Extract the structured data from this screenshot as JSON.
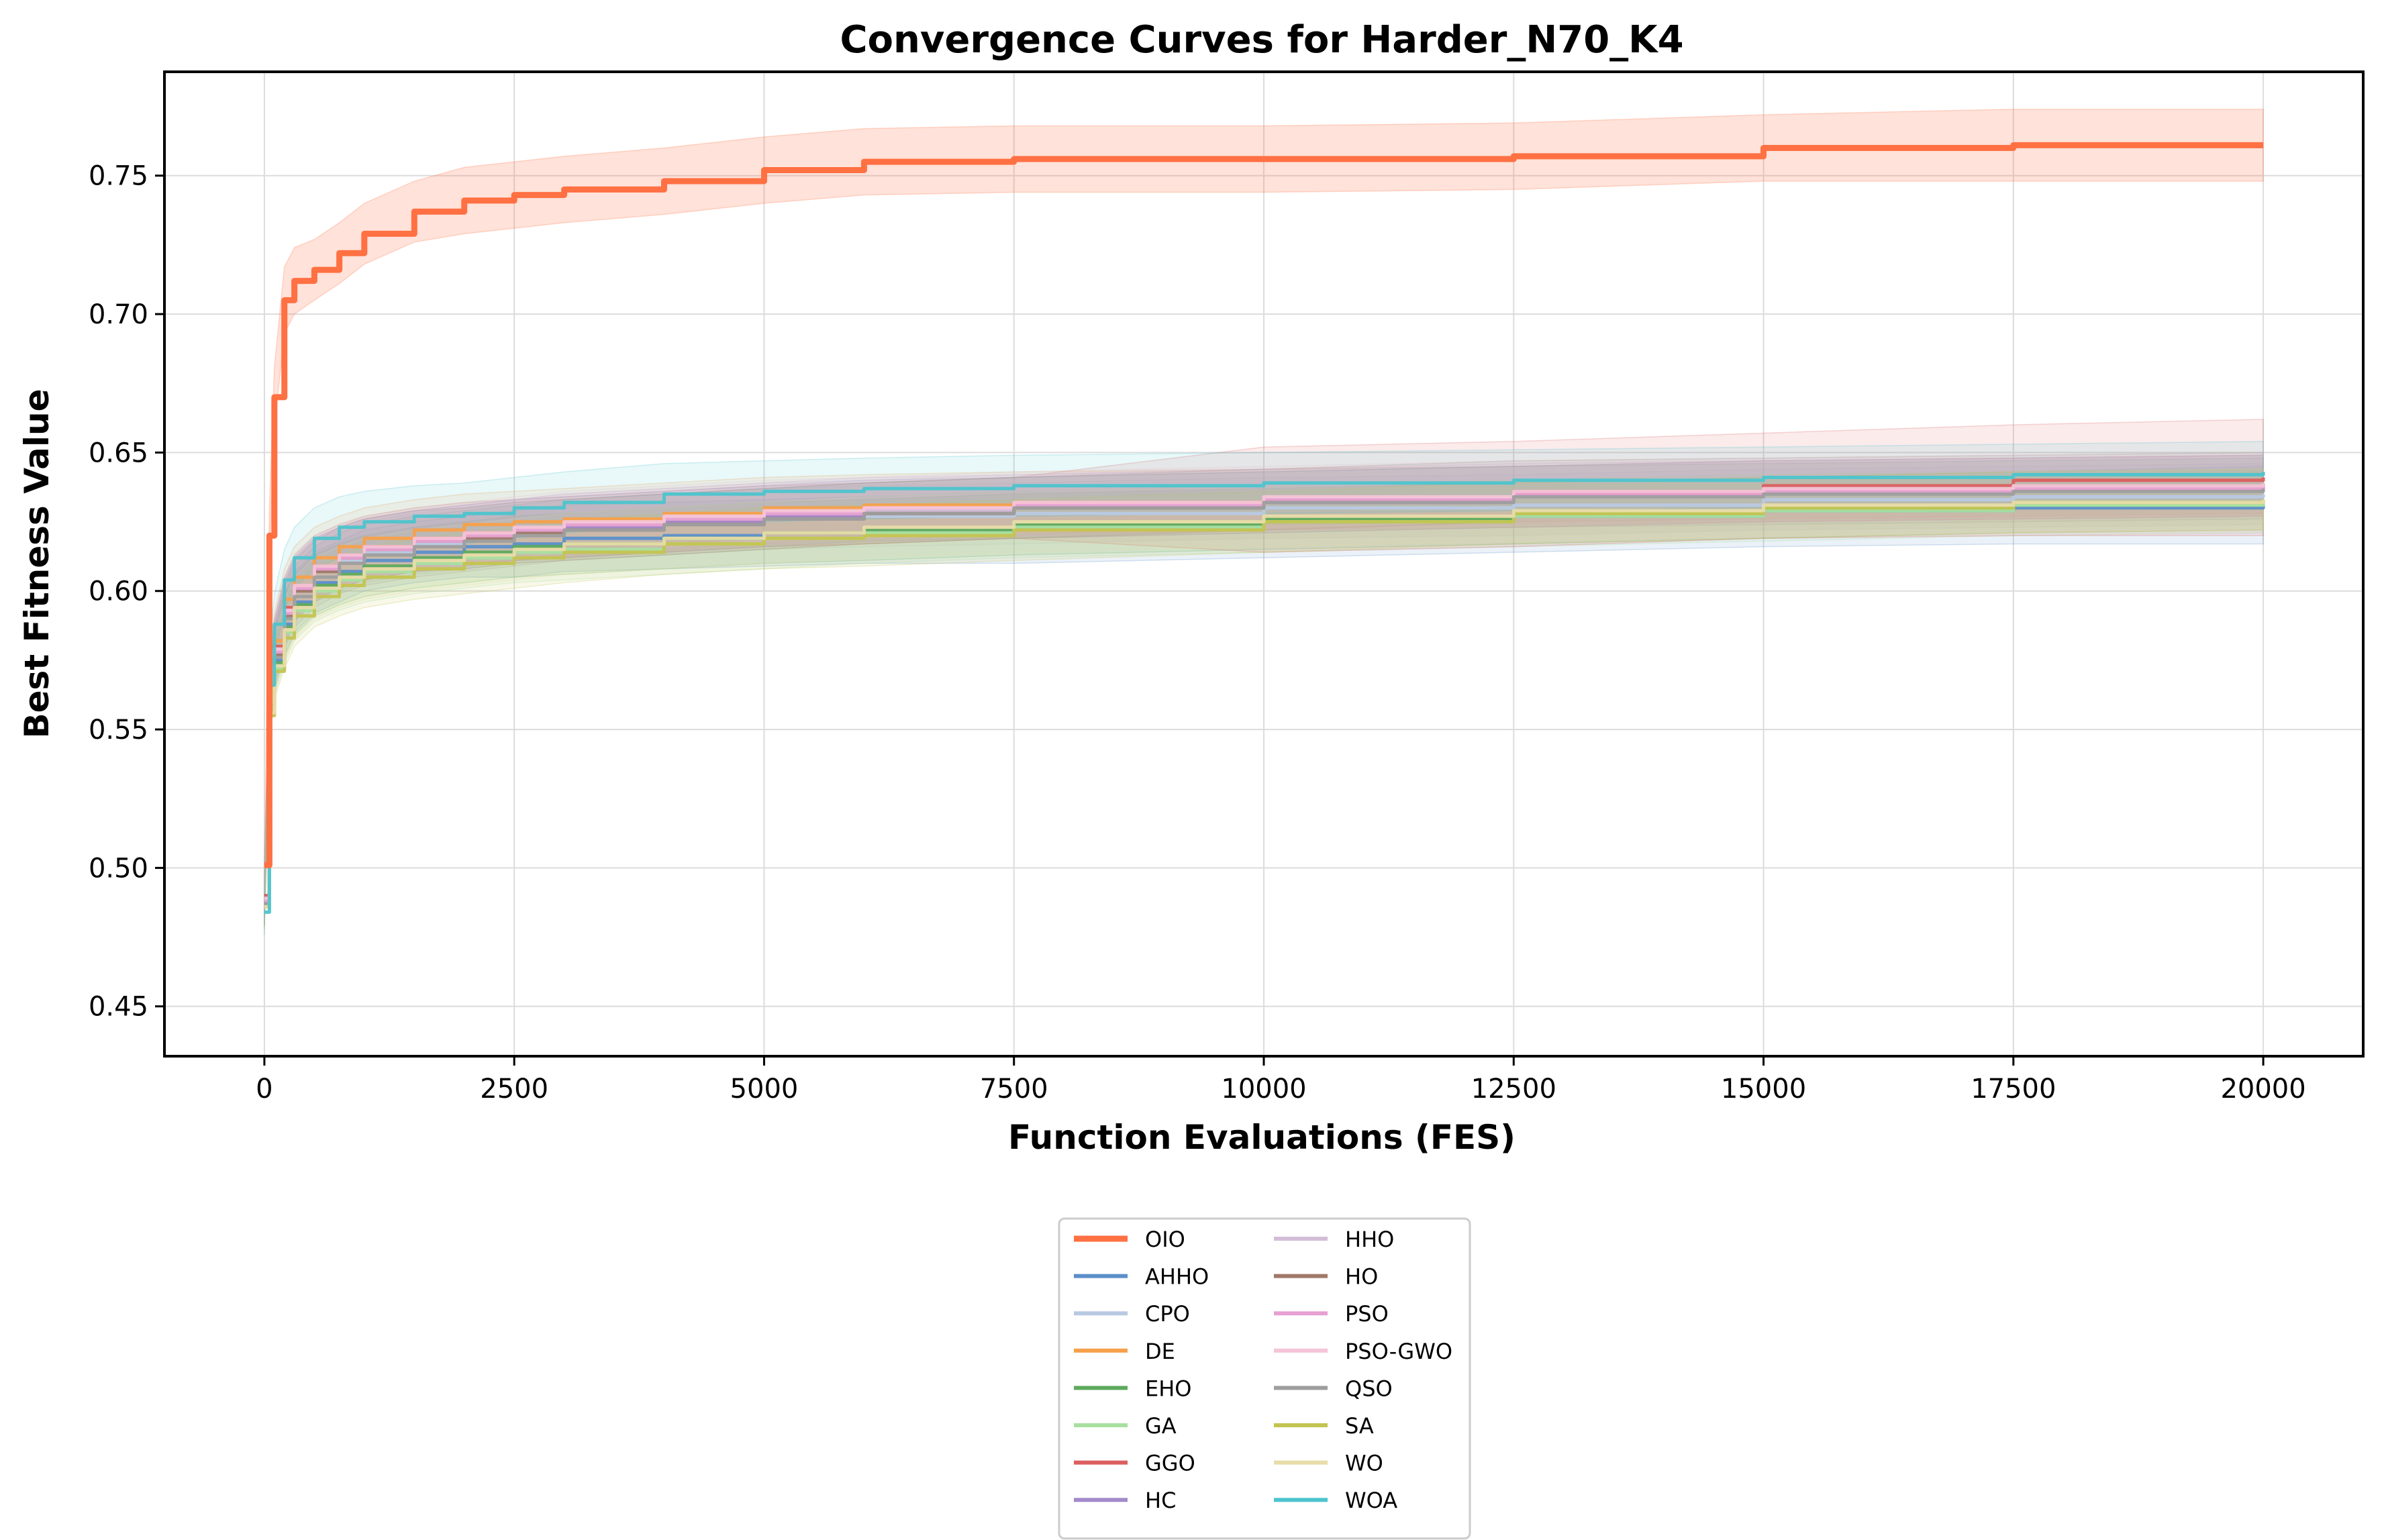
{
  "chart_data": {
    "type": "line",
    "title": "Convergence Curves for Harder_N70_K4",
    "xlabel": "Function Evaluations (FES)",
    "ylabel": "Best Fitness Value",
    "xlim": [
      -1000,
      21000
    ],
    "ylim": [
      0.432,
      0.7875
    ],
    "xticks": [
      0,
      2500,
      5000,
      7500,
      10000,
      12500,
      15000,
      17500,
      20000
    ],
    "yticks": [
      0.45,
      0.5,
      0.55,
      0.6,
      0.65,
      0.7,
      0.75
    ],
    "ytick_labels": [
      "0.45",
      "0.50",
      "0.55",
      "0.60",
      "0.65",
      "0.70",
      "0.75"
    ],
    "grid": true,
    "shaded_band": "std",
    "legend": {
      "placement": "below-center",
      "columns": 2
    },
    "x": [
      0,
      50,
      100,
      200,
      300,
      500,
      750,
      1000,
      1500,
      2000,
      2500,
      3000,
      4000,
      5000,
      6000,
      7500,
      10000,
      12500,
      15000,
      17500,
      20000
    ],
    "series": [
      {
        "name": "OIO",
        "color": "#ff7043",
        "highlight": true,
        "values": [
          0.501,
          0.62,
          0.67,
          0.705,
          0.712,
          0.716,
          0.722,
          0.729,
          0.737,
          0.741,
          0.743,
          0.745,
          0.748,
          0.752,
          0.755,
          0.756,
          0.756,
          0.757,
          0.76,
          0.761,
          0.761
        ],
        "spread": [
          0.0,
          0.01,
          0.011,
          0.012,
          0.012,
          0.011,
          0.011,
          0.011,
          0.011,
          0.012,
          0.012,
          0.012,
          0.012,
          0.012,
          0.012,
          0.012,
          0.012,
          0.012,
          0.012,
          0.013,
          0.013
        ]
      },
      {
        "name": "AHHO",
        "color": "#5b8fc9",
        "values": [
          0.49,
          0.558,
          0.575,
          0.588,
          0.596,
          0.603,
          0.607,
          0.611,
          0.614,
          0.616,
          0.617,
          0.619,
          0.62,
          0.621,
          0.622,
          0.623,
          0.625,
          0.627,
          0.629,
          0.63,
          0.631
        ],
        "spread": [
          0.008,
          0.01,
          0.01,
          0.011,
          0.011,
          0.011,
          0.011,
          0.011,
          0.011,
          0.011,
          0.012,
          0.012,
          0.012,
          0.012,
          0.012,
          0.013,
          0.013,
          0.013,
          0.013,
          0.013,
          0.014
        ]
      },
      {
        "name": "CPO",
        "color": "#b8c9e3",
        "values": [
          0.488,
          0.56,
          0.578,
          0.592,
          0.6,
          0.607,
          0.611,
          0.614,
          0.617,
          0.619,
          0.621,
          0.622,
          0.624,
          0.626,
          0.627,
          0.628,
          0.63,
          0.631,
          0.633,
          0.634,
          0.635
        ],
        "spread": [
          0.008,
          0.01,
          0.01,
          0.011,
          0.011,
          0.011,
          0.011,
          0.011,
          0.011,
          0.011,
          0.011,
          0.011,
          0.011,
          0.011,
          0.011,
          0.011,
          0.011,
          0.011,
          0.011,
          0.011,
          0.011
        ]
      },
      {
        "name": "DE",
        "color": "#f5a04a",
        "values": [
          0.489,
          0.563,
          0.582,
          0.597,
          0.605,
          0.612,
          0.616,
          0.619,
          0.622,
          0.624,
          0.625,
          0.626,
          0.628,
          0.63,
          0.631,
          0.632,
          0.633,
          0.634,
          0.636,
          0.637,
          0.638
        ],
        "spread": [
          0.008,
          0.01,
          0.01,
          0.011,
          0.011,
          0.011,
          0.011,
          0.011,
          0.011,
          0.011,
          0.011,
          0.011,
          0.011,
          0.011,
          0.011,
          0.011,
          0.011,
          0.011,
          0.011,
          0.011,
          0.011
        ]
      },
      {
        "name": "EHO",
        "color": "#5daa5d",
        "values": [
          0.487,
          0.557,
          0.574,
          0.587,
          0.595,
          0.602,
          0.606,
          0.609,
          0.612,
          0.614,
          0.616,
          0.617,
          0.619,
          0.621,
          0.622,
          0.624,
          0.626,
          0.628,
          0.63,
          0.632,
          0.633
        ],
        "spread": [
          0.008,
          0.01,
          0.01,
          0.011,
          0.011,
          0.011,
          0.011,
          0.011,
          0.011,
          0.011,
          0.011,
          0.011,
          0.011,
          0.011,
          0.011,
          0.011,
          0.011,
          0.011,
          0.011,
          0.011,
          0.011
        ]
      },
      {
        "name": "GA",
        "color": "#a8e0a0",
        "values": [
          0.486,
          0.556,
          0.572,
          0.585,
          0.593,
          0.6,
          0.604,
          0.607,
          0.61,
          0.612,
          0.614,
          0.615,
          0.617,
          0.619,
          0.621,
          0.623,
          0.625,
          0.627,
          0.629,
          0.631,
          0.632
        ],
        "spread": [
          0.008,
          0.01,
          0.01,
          0.011,
          0.011,
          0.011,
          0.011,
          0.011,
          0.011,
          0.011,
          0.011,
          0.011,
          0.011,
          0.011,
          0.011,
          0.011,
          0.011,
          0.011,
          0.011,
          0.011,
          0.011
        ]
      },
      {
        "name": "GGO",
        "color": "#dc5e5e",
        "values": [
          0.49,
          0.561,
          0.58,
          0.594,
          0.602,
          0.609,
          0.613,
          0.616,
          0.619,
          0.621,
          0.622,
          0.623,
          0.625,
          0.627,
          0.628,
          0.63,
          0.633,
          0.635,
          0.638,
          0.64,
          0.641
        ],
        "spread": [
          0.008,
          0.01,
          0.01,
          0.011,
          0.011,
          0.011,
          0.011,
          0.011,
          0.011,
          0.011,
          0.011,
          0.011,
          0.011,
          0.011,
          0.011,
          0.011,
          0.019,
          0.019,
          0.019,
          0.02,
          0.021
        ]
      },
      {
        "name": "HC",
        "color": "#a38acb",
        "values": [
          0.488,
          0.56,
          0.579,
          0.593,
          0.601,
          0.608,
          0.612,
          0.615,
          0.618,
          0.62,
          0.622,
          0.623,
          0.625,
          0.627,
          0.629,
          0.63,
          0.632,
          0.634,
          0.636,
          0.637,
          0.638
        ],
        "spread": [
          0.008,
          0.01,
          0.01,
          0.011,
          0.011,
          0.011,
          0.011,
          0.011,
          0.011,
          0.011,
          0.011,
          0.011,
          0.011,
          0.011,
          0.011,
          0.011,
          0.011,
          0.011,
          0.011,
          0.011,
          0.011
        ]
      },
      {
        "name": "HHO",
        "color": "#d3bdd7",
        "values": [
          0.489,
          0.561,
          0.579,
          0.593,
          0.601,
          0.608,
          0.612,
          0.615,
          0.618,
          0.62,
          0.622,
          0.624,
          0.626,
          0.628,
          0.629,
          0.631,
          0.633,
          0.634,
          0.636,
          0.637,
          0.638
        ],
        "spread": [
          0.008,
          0.01,
          0.01,
          0.011,
          0.011,
          0.011,
          0.011,
          0.011,
          0.011,
          0.011,
          0.011,
          0.011,
          0.011,
          0.011,
          0.011,
          0.011,
          0.011,
          0.011,
          0.011,
          0.011,
          0.011
        ]
      },
      {
        "name": "HO",
        "color": "#a07868",
        "values": [
          0.487,
          0.559,
          0.577,
          0.591,
          0.6,
          0.607,
          0.612,
          0.615,
          0.618,
          0.619,
          0.621,
          0.622,
          0.624,
          0.626,
          0.628,
          0.63,
          0.633,
          0.636,
          0.637,
          0.638,
          0.639
        ],
        "spread": [
          0.008,
          0.01,
          0.01,
          0.011,
          0.011,
          0.011,
          0.011,
          0.011,
          0.011,
          0.011,
          0.011,
          0.011,
          0.011,
          0.011,
          0.011,
          0.011,
          0.011,
          0.011,
          0.011,
          0.011,
          0.011
        ]
      },
      {
        "name": "PSO",
        "color": "#e7a0d2",
        "values": [
          0.488,
          0.56,
          0.578,
          0.592,
          0.601,
          0.608,
          0.612,
          0.615,
          0.618,
          0.62,
          0.622,
          0.624,
          0.626,
          0.628,
          0.63,
          0.631,
          0.633,
          0.635,
          0.636,
          0.637,
          0.638
        ],
        "spread": [
          0.008,
          0.01,
          0.01,
          0.011,
          0.011,
          0.011,
          0.011,
          0.011,
          0.011,
          0.011,
          0.011,
          0.011,
          0.011,
          0.011,
          0.011,
          0.011,
          0.011,
          0.011,
          0.011,
          0.011,
          0.011
        ]
      },
      {
        "name": "PSO-GWO",
        "color": "#f6c4d8",
        "values": [
          0.489,
          0.561,
          0.579,
          0.593,
          0.602,
          0.609,
          0.613,
          0.616,
          0.619,
          0.621,
          0.623,
          0.625,
          0.627,
          0.629,
          0.63,
          0.632,
          0.634,
          0.636,
          0.637,
          0.638,
          0.639
        ],
        "spread": [
          0.008,
          0.01,
          0.01,
          0.011,
          0.011,
          0.011,
          0.011,
          0.011,
          0.011,
          0.011,
          0.011,
          0.011,
          0.011,
          0.011,
          0.011,
          0.011,
          0.011,
          0.011,
          0.011,
          0.011,
          0.011
        ]
      },
      {
        "name": "QSO",
        "color": "#9e9e9e",
        "values": [
          0.487,
          0.558,
          0.576,
          0.59,
          0.598,
          0.605,
          0.61,
          0.613,
          0.616,
          0.618,
          0.62,
          0.622,
          0.624,
          0.626,
          0.628,
          0.63,
          0.632,
          0.634,
          0.635,
          0.636,
          0.637
        ],
        "spread": [
          0.008,
          0.01,
          0.01,
          0.011,
          0.011,
          0.011,
          0.011,
          0.011,
          0.011,
          0.011,
          0.011,
          0.011,
          0.011,
          0.011,
          0.011,
          0.011,
          0.011,
          0.011,
          0.011,
          0.011,
          0.011
        ]
      },
      {
        "name": "SA",
        "color": "#c4c451",
        "values": [
          0.486,
          0.555,
          0.571,
          0.583,
          0.591,
          0.598,
          0.602,
          0.605,
          0.608,
          0.61,
          0.612,
          0.614,
          0.617,
          0.619,
          0.62,
          0.622,
          0.625,
          0.628,
          0.63,
          0.632,
          0.633
        ],
        "spread": [
          0.008,
          0.01,
          0.01,
          0.011,
          0.011,
          0.011,
          0.011,
          0.011,
          0.011,
          0.011,
          0.011,
          0.011,
          0.011,
          0.011,
          0.011,
          0.011,
          0.011,
          0.011,
          0.011,
          0.011,
          0.011
        ]
      },
      {
        "name": "WO",
        "color": "#e8dca8",
        "values": [
          0.486,
          0.556,
          0.573,
          0.586,
          0.594,
          0.601,
          0.605,
          0.608,
          0.611,
          0.613,
          0.615,
          0.617,
          0.619,
          0.621,
          0.623,
          0.625,
          0.627,
          0.629,
          0.631,
          0.632,
          0.633
        ],
        "spread": [
          0.008,
          0.01,
          0.01,
          0.011,
          0.011,
          0.011,
          0.011,
          0.011,
          0.011,
          0.011,
          0.011,
          0.011,
          0.011,
          0.011,
          0.011,
          0.011,
          0.011,
          0.011,
          0.011,
          0.011,
          0.011
        ]
      },
      {
        "name": "WOA",
        "color": "#4cc4ce",
        "values": [
          0.484,
          0.566,
          0.588,
          0.604,
          0.612,
          0.619,
          0.623,
          0.625,
          0.627,
          0.628,
          0.63,
          0.632,
          0.635,
          0.636,
          0.637,
          0.638,
          0.639,
          0.64,
          0.641,
          0.642,
          0.643
        ],
        "spread": [
          0.008,
          0.011,
          0.011,
          0.011,
          0.011,
          0.011,
          0.011,
          0.011,
          0.011,
          0.011,
          0.011,
          0.011,
          0.011,
          0.011,
          0.011,
          0.011,
          0.011,
          0.011,
          0.011,
          0.011,
          0.011
        ]
      }
    ]
  }
}
